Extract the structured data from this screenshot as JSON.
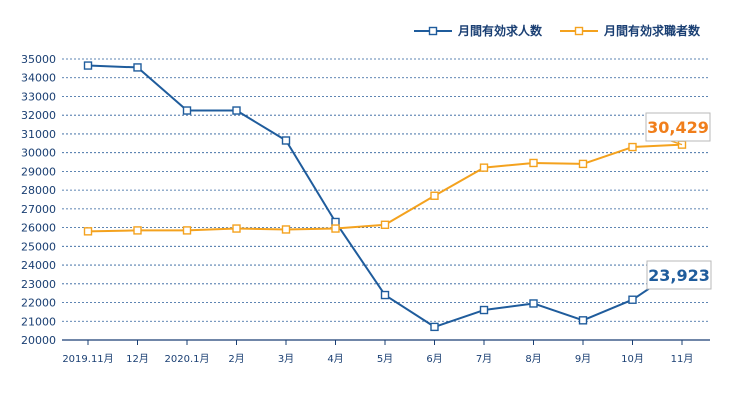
{
  "chart_data": {
    "type": "line",
    "categories": [
      "2019.11月",
      "12月",
      "2020.1月",
      "2月",
      "3月",
      "4月",
      "5月",
      "6月",
      "7月",
      "8月",
      "9月",
      "10月",
      "11月"
    ],
    "series": [
      {
        "name": "月間有効求人数",
        "color": "#1f5c9c",
        "values": [
          34650,
          34550,
          32250,
          32250,
          30650,
          26300,
          22400,
          20700,
          21600,
          21950,
          21050,
          22150,
          23923
        ]
      },
      {
        "name": "月間有効求職者数",
        "color": "#f4a21e",
        "values": [
          25800,
          25850,
          25850,
          25950,
          25900,
          25950,
          26150,
          27700,
          29200,
          29450,
          29400,
          30300,
          30429
        ]
      }
    ],
    "ylim": [
      20000,
      35000
    ],
    "yticks": [
      20000,
      21000,
      22000,
      23000,
      24000,
      25000,
      26000,
      27000,
      28000,
      29000,
      30000,
      31000,
      32000,
      33000,
      34000,
      35000
    ],
    "grid": true,
    "legend_position": "top-right",
    "annotations": [
      {
        "text": "30,429",
        "series": 1,
        "color": "#f07e1b"
      },
      {
        "text": "23,923",
        "series": 0,
        "color": "#1f5c9c"
      }
    ]
  }
}
